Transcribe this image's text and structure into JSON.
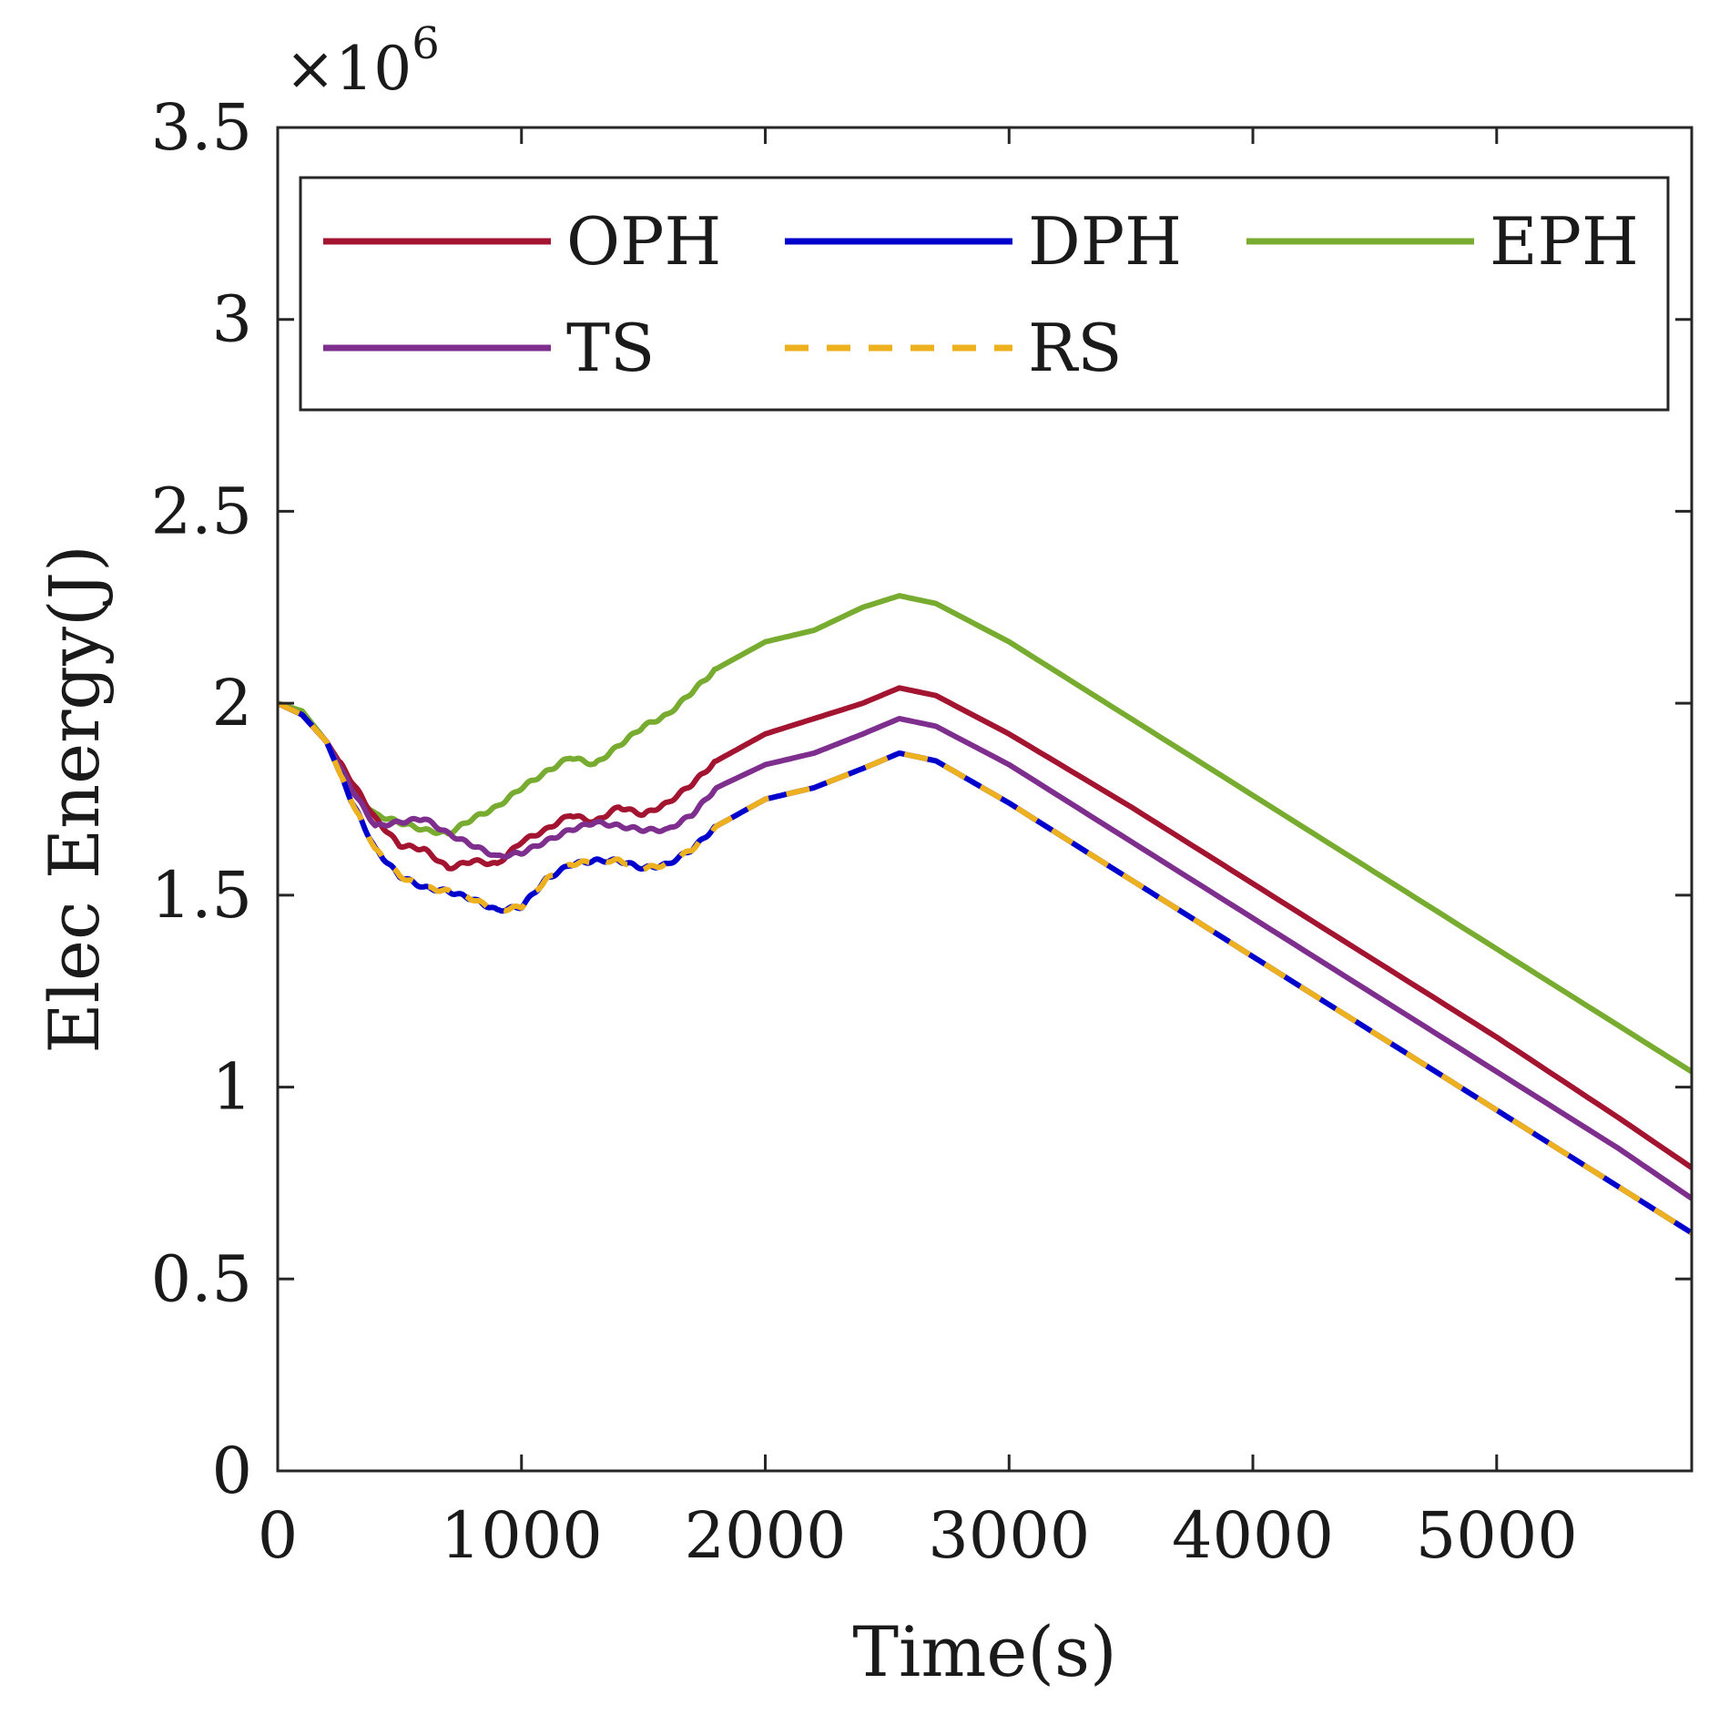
{
  "chart_data": {
    "type": "line",
    "title": "",
    "xlabel": "Time(s)",
    "ylabel": "Elec Energy(J)",
    "y_exponent_label": "×10",
    "y_exponent_power": "6",
    "xlim": [
      0,
      5800
    ],
    "ylim": [
      0,
      3500000
    ],
    "xticks": [
      0,
      1000,
      2000,
      3000,
      4000,
      5000
    ],
    "xtick_labels": [
      "0",
      "1000",
      "2000",
      "3000",
      "4000",
      "5000"
    ],
    "yticks": [
      0,
      500000,
      1000000,
      1500000,
      2000000,
      2500000,
      3000000,
      3500000
    ],
    "ytick_labels": [
      "0",
      "0.5",
      "1",
      "1.5",
      "2",
      "2.5",
      "3",
      "3.5"
    ],
    "grid": false,
    "legend_position": "top",
    "series": [
      {
        "name": "OPH",
        "color": "#a2142f",
        "dash": "solid",
        "x": [
          0,
          100,
          200,
          300,
          400,
          500,
          600,
          700,
          800,
          900,
          1000,
          1100,
          1200,
          1300,
          1400,
          1500,
          1600,
          1700,
          1800,
          2000,
          2200,
          2400,
          2550,
          2700,
          3000,
          3500,
          4000,
          4500,
          5000,
          5500,
          5800
        ],
        "y": [
          2000000,
          1970000,
          1900000,
          1800000,
          1700000,
          1630000,
          1620000,
          1570000,
          1590000,
          1580000,
          1640000,
          1670000,
          1710000,
          1690000,
          1730000,
          1710000,
          1740000,
          1790000,
          1850000,
          1920000,
          1960000,
          2000000,
          2040000,
          2020000,
          1920000,
          1730000,
          1530000,
          1330000,
          1130000,
          920000,
          790000
        ]
      },
      {
        "name": "DPH",
        "color": "#0000cc",
        "dash": "solid",
        "x": [
          0,
          100,
          200,
          300,
          400,
          500,
          600,
          700,
          800,
          900,
          1000,
          1100,
          1200,
          1300,
          1400,
          1500,
          1600,
          1700,
          1800,
          2000,
          2200,
          2400,
          2550,
          2700,
          3000,
          3500,
          4000,
          4500,
          5000,
          5500,
          5800
        ],
        "y": [
          2000000,
          1970000,
          1900000,
          1750000,
          1620000,
          1550000,
          1520000,
          1510000,
          1490000,
          1460000,
          1470000,
          1540000,
          1580000,
          1590000,
          1590000,
          1570000,
          1580000,
          1620000,
          1680000,
          1750000,
          1780000,
          1830000,
          1870000,
          1850000,
          1740000,
          1540000,
          1340000,
          1140000,
          940000,
          740000,
          620000
        ]
      },
      {
        "name": "EPH",
        "color": "#77ac30",
        "dash": "solid",
        "x": [
          0,
          100,
          200,
          300,
          400,
          500,
          600,
          700,
          800,
          900,
          1000,
          1100,
          1200,
          1300,
          1400,
          1500,
          1600,
          1700,
          1800,
          2000,
          2200,
          2400,
          2550,
          2700,
          3000,
          3500,
          4000,
          4500,
          5000,
          5500,
          5800
        ],
        "y": [
          2000000,
          1980000,
          1900000,
          1780000,
          1710000,
          1690000,
          1670000,
          1660000,
          1700000,
          1730000,
          1780000,
          1820000,
          1860000,
          1840000,
          1890000,
          1940000,
          1970000,
          2030000,
          2090000,
          2160000,
          2190000,
          2250000,
          2280000,
          2260000,
          2160000,
          1960000,
          1760000,
          1560000,
          1360000,
          1160000,
          1040000
        ]
      },
      {
        "name": "TS",
        "color": "#7e2f8e",
        "dash": "solid",
        "x": [
          0,
          100,
          200,
          300,
          400,
          500,
          600,
          700,
          800,
          900,
          1000,
          1100,
          1200,
          1300,
          1400,
          1500,
          1600,
          1700,
          1800,
          2000,
          2200,
          2400,
          2550,
          2700,
          3000,
          3500,
          4000,
          4500,
          5000,
          5500,
          5800
        ],
        "y": [
          2000000,
          1970000,
          1900000,
          1780000,
          1680000,
          1690000,
          1700000,
          1660000,
          1630000,
          1600000,
          1610000,
          1640000,
          1670000,
          1690000,
          1680000,
          1670000,
          1670000,
          1710000,
          1780000,
          1840000,
          1870000,
          1920000,
          1960000,
          1940000,
          1840000,
          1640000,
          1440000,
          1240000,
          1040000,
          840000,
          710000
        ]
      },
      {
        "name": "RS",
        "color": "#edb120",
        "dash": "dashed",
        "x": [
          0,
          100,
          200,
          300,
          400,
          500,
          600,
          700,
          800,
          900,
          1000,
          1100,
          1200,
          1300,
          1400,
          1500,
          1600,
          1700,
          1800,
          2000,
          2200,
          2400,
          2550,
          2700,
          3000,
          3500,
          4000,
          4500,
          5000,
          5500,
          5800
        ],
        "y": [
          2000000,
          1970000,
          1900000,
          1750000,
          1620000,
          1550000,
          1520000,
          1510000,
          1490000,
          1460000,
          1470000,
          1540000,
          1580000,
          1590000,
          1590000,
          1570000,
          1580000,
          1620000,
          1680000,
          1750000,
          1780000,
          1830000,
          1870000,
          1850000,
          1740000,
          1540000,
          1340000,
          1140000,
          940000,
          740000,
          620000
        ]
      }
    ]
  }
}
